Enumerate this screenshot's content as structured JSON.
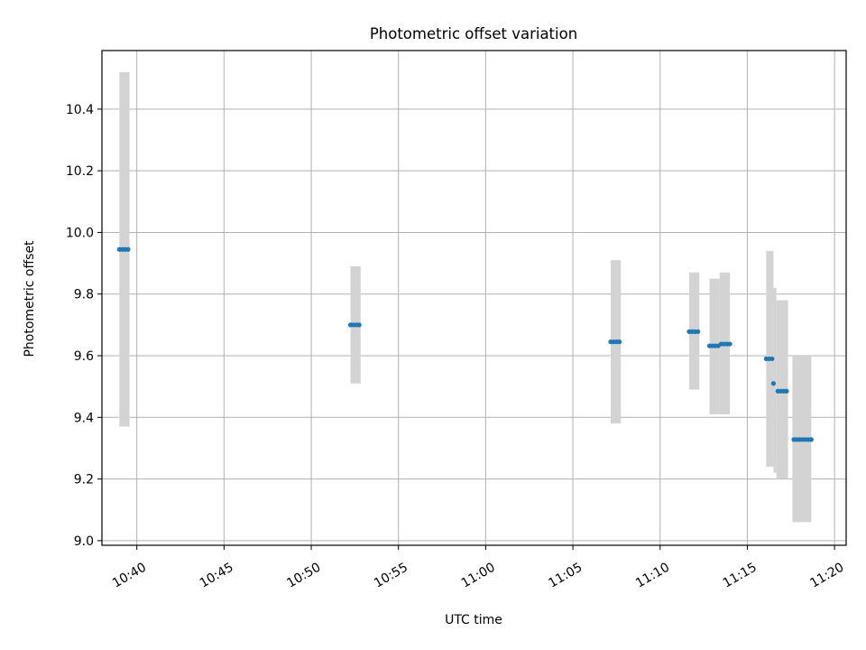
{
  "chart_data": {
    "type": "scatter",
    "title": "Photometric offset variation",
    "xlabel": "UTC time",
    "ylabel": "Photometric offset",
    "xlim": [
      "10:38:00",
      "11:20:40"
    ],
    "ylim": [
      8.985,
      10.59
    ],
    "grid": true,
    "x_ticks": [
      "10:40",
      "10:45",
      "10:50",
      "10:55",
      "11:00",
      "11:05",
      "11:10",
      "11:15",
      "11:20"
    ],
    "y_ticks": [
      "9.0",
      "9.2",
      "9.4",
      "9.6",
      "9.8",
      "10.0",
      "10.2",
      "10.4"
    ],
    "error_bars": [
      {
        "t_start": "10:39:00",
        "t_end": "10:39:35",
        "low": 9.37,
        "high": 10.52
      },
      {
        "t_start": "10:52:15",
        "t_end": "10:52:50",
        "low": 9.51,
        "high": 9.89
      },
      {
        "t_start": "11:07:10",
        "t_end": "11:07:45",
        "low": 9.38,
        "high": 9.91
      },
      {
        "t_start": "11:11:40",
        "t_end": "11:12:15",
        "low": 9.49,
        "high": 9.87
      },
      {
        "t_start": "11:12:50",
        "t_end": "11:13:25",
        "low": 9.41,
        "high": 9.85
      },
      {
        "t_start": "11:13:25",
        "t_end": "11:14:00",
        "low": 9.41,
        "high": 9.87
      },
      {
        "t_start": "11:16:05",
        "t_end": "11:16:30",
        "low": 9.24,
        "high": 9.94
      },
      {
        "t_start": "11:16:30",
        "t_end": "11:16:40",
        "low": 9.22,
        "high": 9.82
      },
      {
        "t_start": "11:16:40",
        "t_end": "11:17:20",
        "low": 9.2,
        "high": 9.78
      },
      {
        "t_start": "11:17:35",
        "t_end": "11:18:40",
        "low": 9.06,
        "high": 9.6
      }
    ],
    "series": [
      {
        "color": "#1f77b4",
        "points": [
          {
            "t": "10:39:00",
            "y": 9.945
          },
          {
            "t": "10:39:10",
            "y": 9.945
          },
          {
            "t": "10:39:20",
            "y": 9.945
          },
          {
            "t": "10:39:30",
            "y": 9.945
          },
          {
            "t": "10:52:15",
            "y": 9.7
          },
          {
            "t": "10:52:25",
            "y": 9.7
          },
          {
            "t": "10:52:35",
            "y": 9.7
          },
          {
            "t": "10:52:45",
            "y": 9.7
          },
          {
            "t": "11:07:10",
            "y": 9.645
          },
          {
            "t": "11:07:20",
            "y": 9.645
          },
          {
            "t": "11:07:30",
            "y": 9.645
          },
          {
            "t": "11:07:40",
            "y": 9.645
          },
          {
            "t": "11:11:40",
            "y": 9.678
          },
          {
            "t": "11:11:50",
            "y": 9.678
          },
          {
            "t": "11:12:00",
            "y": 9.678
          },
          {
            "t": "11:12:10",
            "y": 9.678
          },
          {
            "t": "11:12:50",
            "y": 9.632
          },
          {
            "t": "11:13:00",
            "y": 9.632
          },
          {
            "t": "11:13:10",
            "y": 9.632
          },
          {
            "t": "11:13:20",
            "y": 9.632
          },
          {
            "t": "11:13:30",
            "y": 9.638
          },
          {
            "t": "11:13:40",
            "y": 9.638
          },
          {
            "t": "11:13:50",
            "y": 9.638
          },
          {
            "t": "11:14:00",
            "y": 9.638
          },
          {
            "t": "11:16:05",
            "y": 9.59
          },
          {
            "t": "11:16:15",
            "y": 9.59
          },
          {
            "t": "11:16:25",
            "y": 9.59
          },
          {
            "t": "11:16:30",
            "y": 9.51
          },
          {
            "t": "11:16:45",
            "y": 9.485
          },
          {
            "t": "11:16:55",
            "y": 9.485
          },
          {
            "t": "11:17:05",
            "y": 9.485
          },
          {
            "t": "11:17:15",
            "y": 9.485
          },
          {
            "t": "11:17:40",
            "y": 9.328
          },
          {
            "t": "11:17:50",
            "y": 9.328
          },
          {
            "t": "11:18:00",
            "y": 9.328
          },
          {
            "t": "11:18:10",
            "y": 9.328
          },
          {
            "t": "11:18:20",
            "y": 9.328
          },
          {
            "t": "11:18:30",
            "y": 9.328
          },
          {
            "t": "11:18:40",
            "y": 9.328
          }
        ]
      }
    ]
  }
}
